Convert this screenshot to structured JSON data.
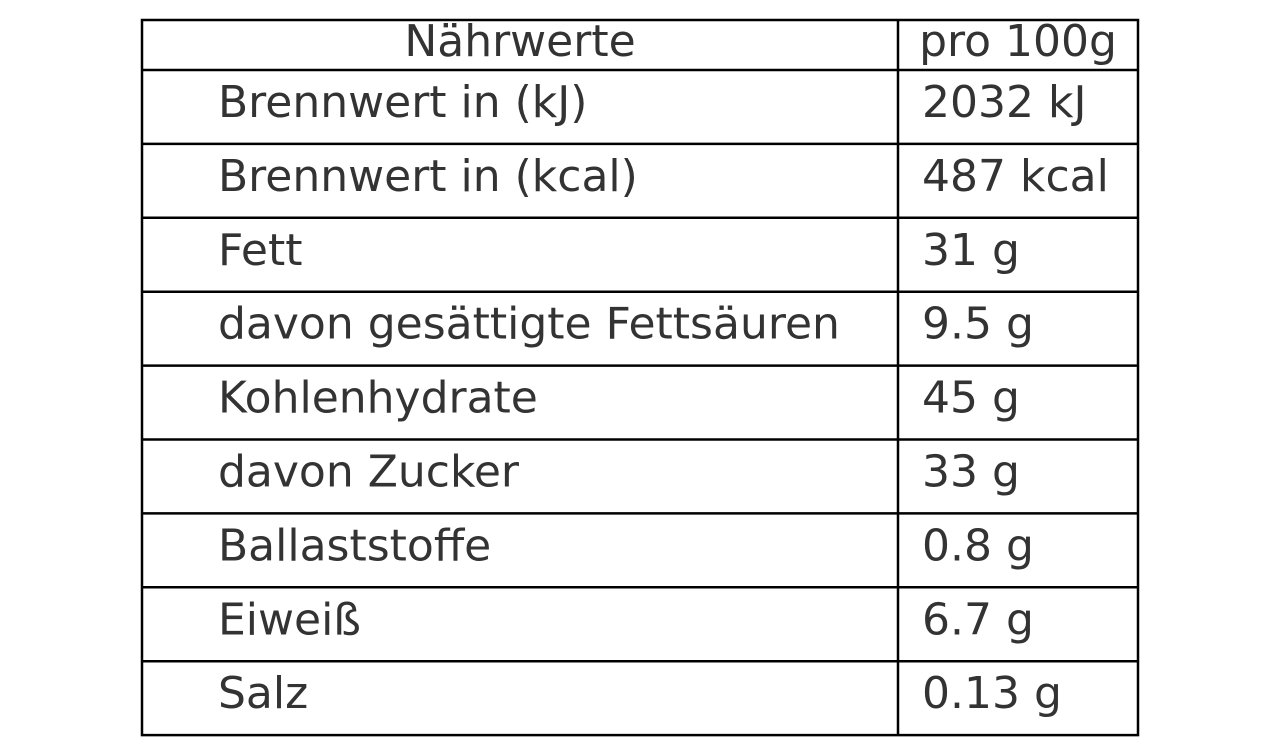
{
  "table": {
    "header": [
      "Nährwerte",
      "pro 100g"
    ],
    "rows": [
      [
        "Brennwert in (kJ)",
        "2032 kJ"
      ],
      [
        "Brennwert in (kcal)",
        "487 kcal"
      ],
      [
        "Fett",
        "31 g"
      ],
      [
        "davon gesättigte Fettsäuren",
        "9.5 g"
      ],
      [
        "Kohlenhydrate",
        "45 g"
      ],
      [
        "davon Zucker",
        "33 g"
      ],
      [
        "Ballaststoffe",
        "0.8 g"
      ],
      [
        "Eiweiß",
        "6.7 g"
      ],
      [
        "Salz",
        "0.13 g"
      ]
    ]
  }
}
